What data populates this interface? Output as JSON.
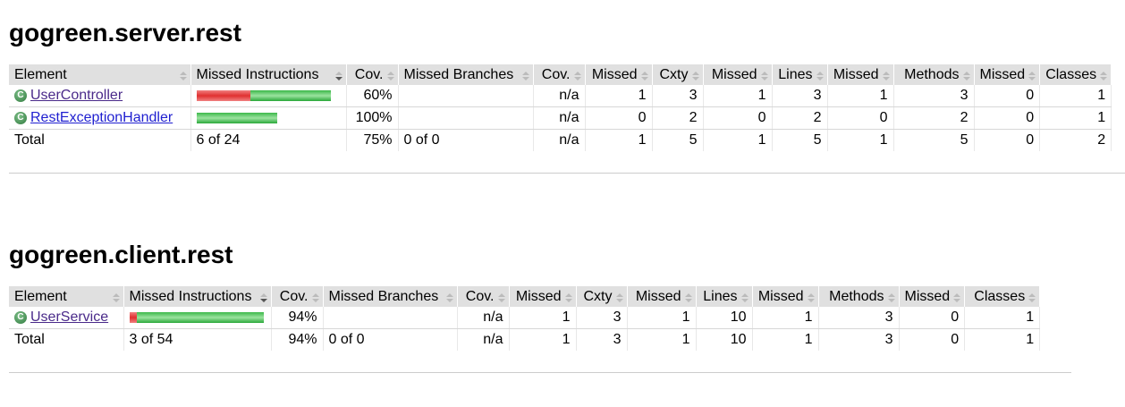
{
  "columns": [
    "Element",
    "Missed Instructions",
    "Cov.",
    "Missed Branches",
    "Cov.",
    "Missed",
    "Cxty",
    "Missed",
    "Lines",
    "Missed",
    "Methods",
    "Missed",
    "Classes"
  ],
  "colors": {
    "missed": "#e03030",
    "covered": "#2aa83a",
    "header_bg": "#e0e0e0"
  },
  "packages": [
    {
      "title": "gogreen.server.rest",
      "rows": [
        {
          "name": "UserController",
          "icon": "class-icon",
          "missed_instr": 6,
          "covered_instr": 9,
          "cells": [
            "60%",
            "",
            "n/a",
            "1",
            "3",
            "1",
            "3",
            "1",
            "3",
            "0",
            "1"
          ]
        },
        {
          "name": "RestExceptionHandler",
          "icon": "class-icon",
          "missed_instr": 0,
          "covered_instr": 9,
          "cells": [
            "100%",
            "",
            "n/a",
            "0",
            "2",
            "0",
            "2",
            "0",
            "2",
            "0",
            "1"
          ]
        }
      ],
      "total": {
        "label": "Total",
        "cells": [
          "6 of 24",
          "75%",
          "0 of 0",
          "n/a",
          "1",
          "5",
          "1",
          "5",
          "1",
          "5",
          "0",
          "2"
        ]
      }
    },
    {
      "title": "gogreen.client.rest",
      "rows": [
        {
          "name": "UserService",
          "icon": "class-icon",
          "missed_instr": 3,
          "covered_instr": 51,
          "cells": [
            "94%",
            "",
            "n/a",
            "1",
            "3",
            "1",
            "10",
            "1",
            "3",
            "0",
            "1"
          ]
        }
      ],
      "total": {
        "label": "Total",
        "cells": [
          "3 of 54",
          "94%",
          "0 of 0",
          "n/a",
          "1",
          "3",
          "1",
          "10",
          "1",
          "3",
          "0",
          "1"
        ]
      }
    }
  ]
}
